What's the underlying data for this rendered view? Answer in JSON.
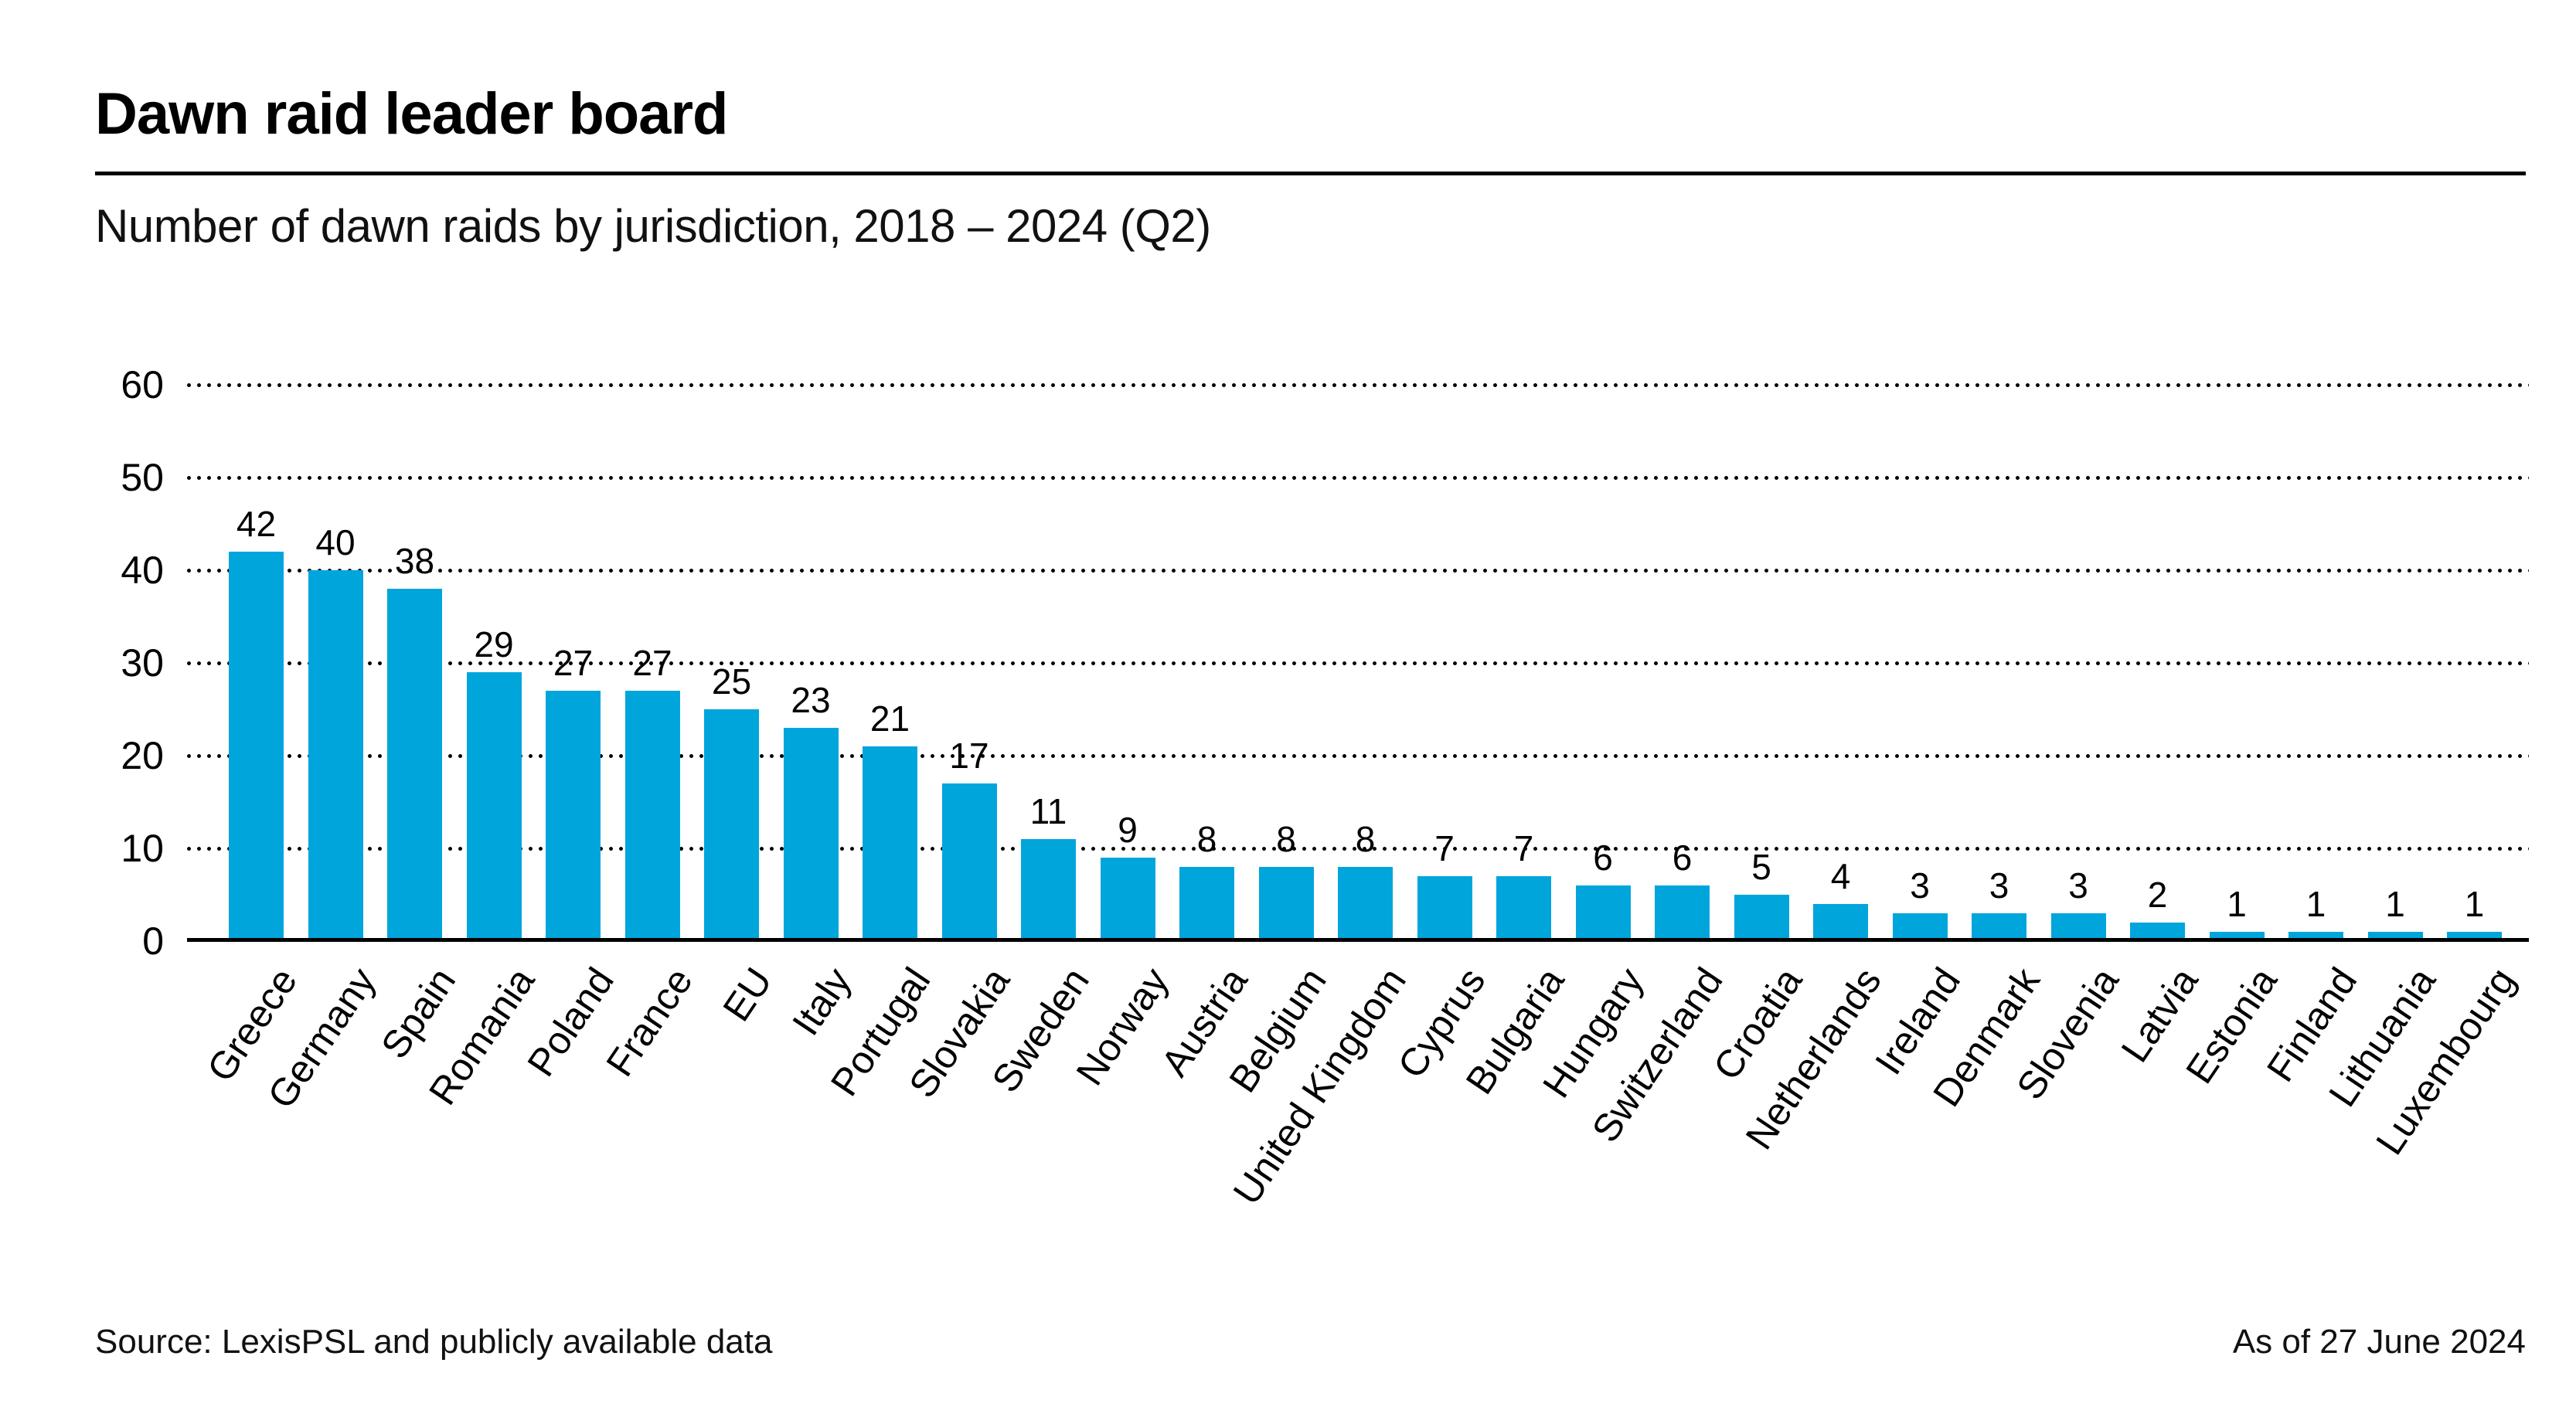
{
  "chart_data": {
    "type": "bar",
    "title": "Dawn raid leader board",
    "subtitle": "Number of dawn raids by jurisdiction, 2018 – 2024 (Q2)",
    "categories": [
      "Greece",
      "Germany",
      "Spain",
      "Romania",
      "Poland",
      "France",
      "EU",
      "Italy",
      "Portugal",
      "Slovakia",
      "Sweden",
      "Norway",
      "Austria",
      "Belgium",
      "United Kingdom",
      "Cyprus",
      "Bulgaria",
      "Hungary",
      "Switzerland",
      "Croatia",
      "Netherlands",
      "Ireland",
      "Denmark",
      "Slovenia",
      "Latvia",
      "Estonia",
      "Finland",
      "Lithuania",
      "Luxembourg"
    ],
    "values": [
      42,
      40,
      38,
      29,
      27,
      27,
      25,
      23,
      21,
      17,
      11,
      9,
      8,
      8,
      8,
      7,
      7,
      6,
      6,
      5,
      4,
      3,
      3,
      3,
      2,
      1,
      1,
      1,
      1
    ],
    "xlabel": "",
    "ylabel": "",
    "ylim": [
      0,
      60
    ],
    "yticks": [
      0,
      10,
      20,
      30,
      40,
      50,
      60
    ],
    "grid": "horizontal-dotted",
    "legend": "none",
    "bar_color": "#00A5DC",
    "value_labels_shown": true
  },
  "footer": {
    "source": "Source: LexisPSL and publicly available data",
    "as_of": "As of 27 June 2024"
  }
}
